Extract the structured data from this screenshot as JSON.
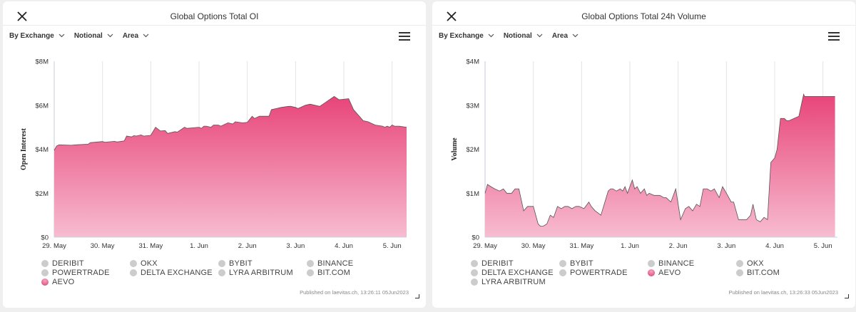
{
  "panels": [
    {
      "title": "Global Options Total OI",
      "toolbar": {
        "group": "By Exchange",
        "unit": "Notional",
        "chart_type": "Area"
      },
      "published": "Published on laevitas.ch, 13:26:11 05Jun2023",
      "legend": [
        {
          "label": "DERIBIT",
          "active": false
        },
        {
          "label": "OKX",
          "active": false
        },
        {
          "label": "BYBIT",
          "active": false
        },
        {
          "label": "BINANCE",
          "active": false
        },
        {
          "label": "POWERTRADE",
          "active": false
        },
        {
          "label": "DELTA EXCHANGE",
          "active": false
        },
        {
          "label": "LYRA ARBITRUM",
          "active": false
        },
        {
          "label": "BIT.COM",
          "active": false
        },
        {
          "label": "AEVO",
          "active": true
        }
      ]
    },
    {
      "title": "Global Options Total 24h Volume",
      "toolbar": {
        "group": "By Exchange",
        "unit": "Notional",
        "chart_type": "Area"
      },
      "published": "Published on laevitas.ch, 13:26:33 05Jun2023",
      "legend": [
        {
          "label": "DERIBIT",
          "active": false
        },
        {
          "label": "BYBIT",
          "active": false
        },
        {
          "label": "BINANCE",
          "active": false
        },
        {
          "label": "OKX",
          "active": false
        },
        {
          "label": "DELTA EXCHANGE",
          "active": false
        },
        {
          "label": "POWERTRADE",
          "active": false
        },
        {
          "label": "AEVO",
          "active": true
        },
        {
          "label": "BIT.COM",
          "active": false
        },
        {
          "label": "LYRA ARBITRUM",
          "active": false
        }
      ]
    }
  ],
  "chart_data": [
    {
      "type": "area",
      "title": "Global Options Total OI",
      "ylabel": "Open Interest",
      "xlabel": "",
      "x_ticks": [
        "29. May",
        "30. May",
        "31. May",
        "1. Jun",
        "2. Jun",
        "3. Jun",
        "4. Jun",
        "5. Jun"
      ],
      "y_ticks": [
        "$0",
        "$2M",
        "$4M",
        "$6M",
        "$8M"
      ],
      "xlim": [
        29.0,
        36.3
      ],
      "ylim": [
        0,
        8000000
      ],
      "grid": true,
      "color": "#e8457a",
      "series": [
        {
          "name": "AEVO",
          "x": [
            29.0,
            29.05,
            29.1,
            29.35,
            29.45,
            29.7,
            29.75,
            30.0,
            30.05,
            30.25,
            30.3,
            30.45,
            30.5,
            30.6,
            30.65,
            30.7,
            30.8,
            30.85,
            31.0,
            31.1,
            31.2,
            31.3,
            31.35,
            31.5,
            31.55,
            31.7,
            31.75,
            32.0,
            32.05,
            32.1,
            32.15,
            32.25,
            32.3,
            32.4,
            32.45,
            32.55,
            32.6,
            32.7,
            32.75,
            32.9,
            33.0,
            33.1,
            33.15,
            33.2,
            33.25,
            33.45,
            33.5,
            33.6,
            33.7,
            33.85,
            33.9,
            34.0,
            34.05,
            34.2,
            34.3,
            34.5,
            34.6,
            34.8,
            34.9,
            35.1,
            35.2,
            35.4,
            35.5,
            35.6,
            35.65,
            35.8,
            35.85,
            35.9,
            35.95,
            36.0,
            36.05,
            36.15,
            36.2,
            36.3
          ],
          "values": [
            3950000,
            4150000,
            4200000,
            4180000,
            4200000,
            4230000,
            4300000,
            4350000,
            4320000,
            4360000,
            4330000,
            4380000,
            4600000,
            4560000,
            4620000,
            4600000,
            4650000,
            4600000,
            4630000,
            5000000,
            4830000,
            4850000,
            4720000,
            4800000,
            4780000,
            5000000,
            4950000,
            5000000,
            4950000,
            5050000,
            5050000,
            5000000,
            5100000,
            5100000,
            5050000,
            5150000,
            5200000,
            5150000,
            5250000,
            5200000,
            5220000,
            5500000,
            5400000,
            5450000,
            5500000,
            5500000,
            5800000,
            5850000,
            5900000,
            5950000,
            5950000,
            5900000,
            5850000,
            6000000,
            6050000,
            5950000,
            6100000,
            6400000,
            6250000,
            6300000,
            5800000,
            5300000,
            5250000,
            5150000,
            5100000,
            5050000,
            5000000,
            5050000,
            5000000,
            5100000,
            5050000,
            5050000,
            5030000,
            5000000
          ]
        }
      ]
    },
    {
      "type": "area",
      "title": "Global Options Total 24h Volume",
      "ylabel": "Volume",
      "xlabel": "",
      "x_ticks": [
        "29. May",
        "30. May",
        "31. May",
        "1. Jun",
        "2. Jun",
        "3. Jun",
        "4. Jun",
        "5. Jun"
      ],
      "y_ticks": [
        "$0",
        "$1M",
        "$2M",
        "$3M",
        "$4M"
      ],
      "xlim": [
        29.0,
        36.3
      ],
      "ylim": [
        0,
        4000000
      ],
      "grid": true,
      "color": "#e8457a",
      "series": [
        {
          "name": "AEVO",
          "x": [
            29.0,
            29.05,
            29.12,
            29.2,
            29.3,
            29.38,
            29.45,
            29.55,
            29.62,
            29.7,
            29.8,
            29.88,
            29.95,
            30.0,
            30.1,
            30.15,
            30.2,
            30.28,
            30.35,
            30.42,
            30.5,
            30.58,
            30.65,
            30.72,
            30.8,
            30.88,
            30.95,
            31.05,
            31.15,
            31.2,
            31.28,
            31.4,
            31.55,
            31.6,
            31.65,
            31.72,
            31.8,
            31.85,
            31.9,
            31.95,
            32.0,
            32.05,
            32.1,
            32.15,
            32.22,
            32.3,
            32.35,
            32.4,
            32.5,
            32.55,
            32.62,
            32.7,
            32.75,
            32.85,
            32.95,
            33.05,
            33.15,
            33.22,
            33.3,
            33.38,
            33.45,
            33.52,
            33.6,
            33.68,
            33.75,
            33.85,
            33.92,
            34.0,
            34.1,
            34.15,
            34.25,
            34.35,
            34.42,
            34.5,
            34.55,
            34.62,
            34.7,
            34.78,
            34.85,
            34.92,
            35.0,
            35.05,
            35.12,
            35.2,
            35.25,
            35.3,
            35.4,
            35.5,
            35.6,
            35.62,
            35.68,
            35.75,
            35.8,
            35.85,
            35.9,
            36.0,
            36.1,
            36.15,
            36.2,
            36.22,
            36.25
          ],
          "values": [
            1000000,
            1200000,
            1150000,
            1100000,
            1050000,
            1100000,
            1000000,
            1000000,
            1100000,
            1100000,
            600000,
            700000,
            700000,
            700000,
            300000,
            250000,
            250000,
            300000,
            500000,
            450000,
            700000,
            650000,
            700000,
            700000,
            650000,
            700000,
            700000,
            650000,
            800000,
            700000,
            600000,
            500000,
            1050000,
            1100000,
            1100000,
            1050000,
            1100000,
            1050000,
            1150000,
            1000000,
            1150000,
            1300000,
            1100000,
            1150000,
            1000000,
            1100000,
            950000,
            1000000,
            950000,
            950000,
            950000,
            900000,
            900000,
            800000,
            1100000,
            400000,
            650000,
            700000,
            600000,
            750000,
            700000,
            1100000,
            1100000,
            1050000,
            1100000,
            900000,
            1150000,
            1000000,
            800000,
            800000,
            400000,
            400000,
            400000,
            500000,
            750000,
            400000,
            350000,
            450000,
            400000,
            1700000,
            1800000,
            2000000,
            2700000,
            2700000,
            2650000,
            2650000,
            2700000,
            2750000,
            3250000,
            3200000,
            3200000,
            3200000,
            3200000,
            3200000,
            3200000,
            3200000,
            3200000,
            3200000,
            3200000,
            3200000,
            3200000
          ]
        }
      ]
    }
  ]
}
